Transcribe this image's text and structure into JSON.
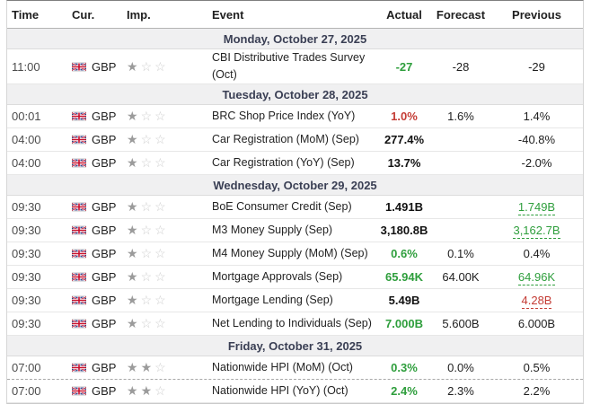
{
  "colors": {
    "positive": "#2e9e3c",
    "negative": "#c43c35",
    "neutral_bold": "#111111",
    "date_header_text": "#3a3f54",
    "date_header_bg": "#f0f0f1"
  },
  "table": {
    "columns": [
      {
        "key": "time",
        "label": "Time"
      },
      {
        "key": "cur",
        "label": "Cur."
      },
      {
        "key": "imp",
        "label": "Imp."
      },
      {
        "key": "event",
        "label": "Event"
      },
      {
        "key": "actual",
        "label": "Actual"
      },
      {
        "key": "forecast",
        "label": "Forecast"
      },
      {
        "key": "previous",
        "label": "Previous"
      }
    ],
    "importance_max": 3,
    "groups": [
      {
        "date": "Monday, October 27, 2025",
        "rows": [
          {
            "time": "11:00",
            "currency": "GBP",
            "flag": "gbp",
            "importance": 1,
            "event": "CBI Distributive Trades Survey (Oct)",
            "actual": {
              "text": "-27",
              "color": "green"
            },
            "forecast": {
              "text": "-28"
            },
            "previous": {
              "text": "-29"
            }
          }
        ]
      },
      {
        "date": "Tuesday, October 28, 2025",
        "rows": [
          {
            "time": "00:01",
            "currency": "GBP",
            "flag": "gbp",
            "importance": 1,
            "event": "BRC Shop Price Index (YoY)",
            "actual": {
              "text": "1.0%",
              "color": "red"
            },
            "forecast": {
              "text": "1.6%"
            },
            "previous": {
              "text": "1.4%"
            }
          },
          {
            "time": "04:00",
            "currency": "GBP",
            "flag": "gbp",
            "importance": 1,
            "event": "Car Registration (MoM) (Sep)",
            "actual": {
              "text": "277.4%",
              "color": "black"
            },
            "forecast": {
              "text": ""
            },
            "previous": {
              "text": "-40.8%"
            }
          },
          {
            "time": "04:00",
            "currency": "GBP",
            "flag": "gbp",
            "importance": 1,
            "event": "Car Registration (YoY) (Sep)",
            "actual": {
              "text": "13.7%",
              "color": "black"
            },
            "forecast": {
              "text": ""
            },
            "previous": {
              "text": "-2.0%"
            }
          }
        ]
      },
      {
        "date": "Wednesday, October 29, 2025",
        "rows": [
          {
            "time": "09:30",
            "currency": "GBP",
            "flag": "gbp",
            "importance": 1,
            "event": "BoE Consumer Credit (Sep)",
            "actual": {
              "text": "1.491B",
              "color": "black"
            },
            "forecast": {
              "text": ""
            },
            "previous": {
              "text": "1.749B",
              "color": "green",
              "revised": true
            }
          },
          {
            "time": "09:30",
            "currency": "GBP",
            "flag": "gbp",
            "importance": 1,
            "event": "M3 Money Supply (Sep)",
            "actual": {
              "text": "3,180.8B",
              "color": "black"
            },
            "forecast": {
              "text": ""
            },
            "previous": {
              "text": "3,162.7B",
              "color": "green",
              "revised": true
            }
          },
          {
            "time": "09:30",
            "currency": "GBP",
            "flag": "gbp",
            "importance": 1,
            "event": "M4 Money Supply (MoM) (Sep)",
            "actual": {
              "text": "0.6%",
              "color": "green"
            },
            "forecast": {
              "text": "0.1%"
            },
            "previous": {
              "text": "0.4%"
            }
          },
          {
            "time": "09:30",
            "currency": "GBP",
            "flag": "gbp",
            "importance": 1,
            "event": "Mortgage Approvals (Sep)",
            "actual": {
              "text": "65.94K",
              "color": "green"
            },
            "forecast": {
              "text": "64.00K"
            },
            "previous": {
              "text": "64.96K",
              "color": "green",
              "revised": true
            }
          },
          {
            "time": "09:30",
            "currency": "GBP",
            "flag": "gbp",
            "importance": 1,
            "event": "Mortgage Lending (Sep)",
            "actual": {
              "text": "5.49B",
              "color": "black"
            },
            "forecast": {
              "text": ""
            },
            "previous": {
              "text": "4.28B",
              "color": "red",
              "revised": true
            }
          },
          {
            "time": "09:30",
            "currency": "GBP",
            "flag": "gbp",
            "importance": 1,
            "event": "Net Lending to Individuals (Sep)",
            "actual": {
              "text": "7.000B",
              "color": "green"
            },
            "forecast": {
              "text": "5.600B"
            },
            "previous": {
              "text": "6.000B"
            }
          }
        ]
      },
      {
        "date": "Friday, October 31, 2025",
        "rows": [
          {
            "time": "07:00",
            "currency": "GBP",
            "flag": "gbp",
            "importance": 2,
            "event": "Nationwide HPI (MoM) (Oct)",
            "actual": {
              "text": "0.3%",
              "color": "green"
            },
            "forecast": {
              "text": "0.0%"
            },
            "previous": {
              "text": "0.5%"
            }
          },
          {
            "time": "07:00",
            "currency": "GBP",
            "flag": "gbp",
            "importance": 2,
            "event": "Nationwide HPI (YoY) (Oct)",
            "actual": {
              "text": "2.4%",
              "color": "green"
            },
            "forecast": {
              "text": "2.3%"
            },
            "previous": {
              "text": "2.2%"
            },
            "current_time_marker": true
          }
        ]
      }
    ]
  }
}
